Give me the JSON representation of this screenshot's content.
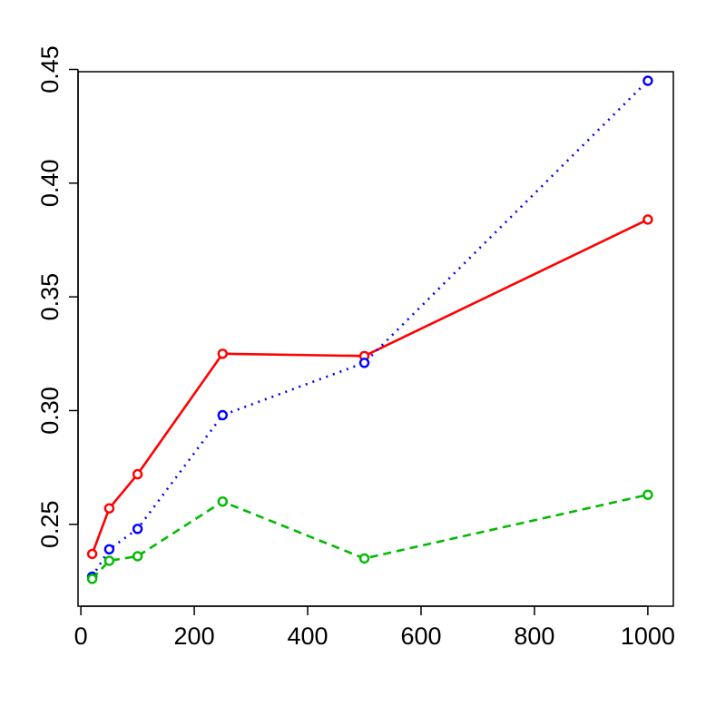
{
  "chart_data": {
    "type": "line",
    "title": "",
    "xlabel": "",
    "ylabel": "",
    "xlim": [
      -5,
      1045
    ],
    "ylim": [
      0.214,
      0.449
    ],
    "x_ticks": [
      0,
      200,
      400,
      600,
      800,
      1000
    ],
    "x_tick_labels": [
      "0",
      "200",
      "400",
      "600",
      "800",
      "1000"
    ],
    "y_ticks": [
      0.25,
      0.3,
      0.35,
      0.4,
      0.45
    ],
    "y_tick_labels": [
      "0.25",
      "0.30",
      "0.35",
      "0.40",
      "0.45"
    ],
    "grid": false,
    "legend": "none",
    "x": [
      20,
      50,
      100,
      250,
      500,
      1000
    ],
    "series": [
      {
        "values": [
          0.237,
          0.257,
          0.272,
          0.325,
          0.324,
          0.384
        ],
        "color": "#ff0000",
        "line_style": "solid",
        "marker": "open-circle"
      },
      {
        "values": [
          0.227,
          0.239,
          0.248,
          0.298,
          0.321,
          0.445
        ],
        "color": "#0000ff",
        "line_style": "dotted",
        "marker": "open-circle"
      },
      {
        "values": [
          0.226,
          0.234,
          0.236,
          0.26,
          0.235,
          0.263
        ],
        "color": "#00bb00",
        "line_style": "dashed",
        "marker": "open-circle"
      }
    ]
  }
}
